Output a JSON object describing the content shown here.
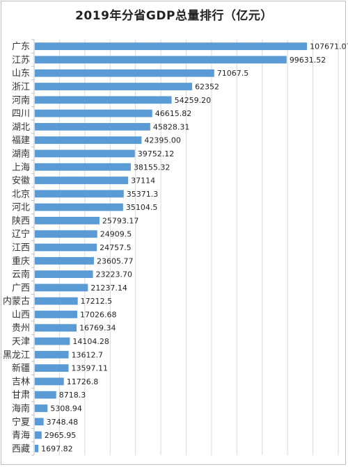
{
  "chart_data": {
    "type": "bar",
    "orientation": "horizontal",
    "title": "2019年分省GDP总量排行（亿元）",
    "bar_color": "#5b9bd5",
    "grid": true,
    "categories": [
      "广东",
      "江苏",
      "山东",
      "浙江",
      "河南",
      "四川",
      "湖北",
      "福建",
      "湖南",
      "上海",
      "安徽",
      "北京",
      "河北",
      "陕西",
      "辽宁",
      "江西",
      "重庆",
      "云南",
      "广西",
      "内蒙古",
      "山西",
      "贵州",
      "天津",
      "黑龙江",
      "新疆",
      "吉林",
      "甘肃",
      "海南",
      "宁夏",
      "青海",
      "西藏"
    ],
    "values": [
      107671.07,
      99631.52,
      71067.5,
      62352,
      54259.2,
      46615.82,
      45828.31,
      42395.0,
      39752.12,
      38155.32,
      37114,
      35371.3,
      35104.5,
      25793.17,
      24909.5,
      24757.5,
      23605.77,
      23223.7,
      21237.14,
      17212.5,
      17026.68,
      16769.34,
      14104.28,
      13612.7,
      13597.11,
      11726.8,
      8718.3,
      5308.94,
      3748.48,
      2965.95,
      1697.82
    ],
    "value_labels": [
      "107671.07",
      "99631.52",
      "71067.5",
      "62352",
      "54259.20",
      "46615.82",
      "45828.31",
      "42395.00",
      "39752.12",
      "38155.32",
      "37114",
      "35371.3",
      "35104.5",
      "25793.17",
      "24909.5",
      "24757.5",
      "23605.77",
      "23223.70",
      "21237.14",
      "17212.5",
      "17026.68",
      "16769.34",
      "14104.28",
      "13612.7",
      "13597.11",
      "11726.8",
      "8718.3",
      "5308.94",
      "3748.48",
      "2965.95",
      "1697.82"
    ],
    "xlim": [
      0,
      120000
    ]
  }
}
